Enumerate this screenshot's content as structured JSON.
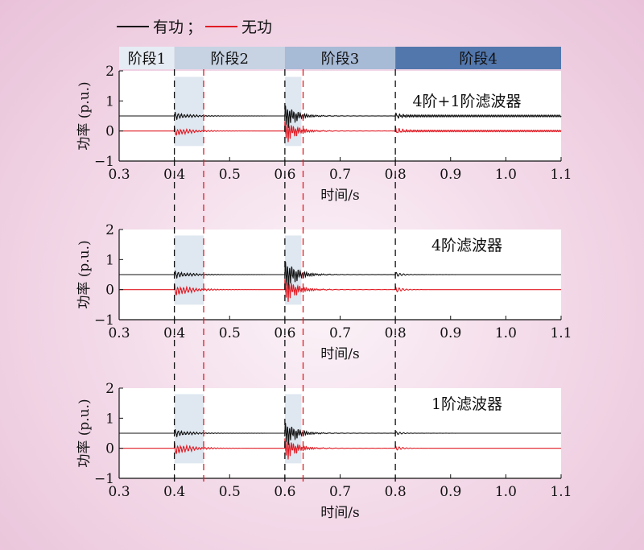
{
  "legend": {
    "active_label": "有功",
    "separator": "；",
    "reactive_label": "无功",
    "active_color": "#111111",
    "reactive_color": "#e01b24"
  },
  "stages": [
    {
      "label": "阶段1",
      "x_start": 0.3,
      "x_end": 0.4,
      "color": "#e6ecf3"
    },
    {
      "label": "阶段2",
      "x_start": 0.4,
      "x_end": 0.6,
      "color": "#c7d3e3"
    },
    {
      "label": "阶段3",
      "x_start": 0.6,
      "x_end": 0.8,
      "color": "#a7bad6"
    },
    {
      "label": "阶段4",
      "x_start": 0.8,
      "x_end": 1.1,
      "color": "#5277ad"
    }
  ],
  "chart_data": [
    {
      "type": "line",
      "annotation": "4阶+1阶滤波器",
      "xlabel": "时间/s",
      "ylabel": "功率 (p.u.)",
      "xlim": [
        0.3,
        1.1
      ],
      "ylim": [
        -1,
        2
      ],
      "xticks": [
        "0.3",
        "0.4",
        "0.5",
        "0.6",
        "0.7",
        "0.8",
        "0.9",
        "1.0",
        "1.1"
      ],
      "yticks": [
        "2",
        "1",
        "0",
        "−1"
      ],
      "shaded_intervals": [
        [
          0.4,
          0.453
        ],
        [
          0.6,
          0.63
        ]
      ],
      "black_dashed_x": [
        0.4,
        0.6,
        0.8
      ],
      "red_dashed_x": [
        0.453,
        0.633
      ],
      "series": [
        {
          "name": "有功",
          "baseline": 0.5,
          "burst_amp": [
            0.15,
            0.55,
            0.08
          ],
          "post_osc_amp": 0.035
        },
        {
          "name": "无功",
          "baseline": 0.0,
          "burst_amp": [
            0.18,
            0.5,
            0.1
          ],
          "post_osc_amp": 0.03
        }
      ]
    },
    {
      "type": "line",
      "annotation": "4阶滤波器",
      "xlabel": "时间/s",
      "ylabel": "功率 (p.u.)",
      "xlim": [
        0.3,
        1.1
      ],
      "ylim": [
        -1,
        2
      ],
      "xticks": [
        "0.3",
        "0.4",
        "0.5",
        "0.6",
        "0.7",
        "0.8",
        "0.9",
        "1.0",
        "1.1"
      ],
      "yticks": [
        "2",
        "1",
        "0",
        "−1"
      ],
      "shaded_intervals": [
        [
          0.4,
          0.453
        ],
        [
          0.6,
          0.63
        ]
      ],
      "black_dashed_x": [
        0.4,
        0.6,
        0.8
      ],
      "red_dashed_x": [
        0.453,
        0.633
      ],
      "series": [
        {
          "name": "有功",
          "baseline": 0.5,
          "burst_amp": [
            0.15,
            0.7,
            0.08
          ],
          "post_osc_amp": 0.0
        },
        {
          "name": "无功",
          "baseline": 0.0,
          "burst_amp": [
            0.25,
            0.55,
            0.1
          ],
          "post_osc_amp": 0.0
        }
      ]
    },
    {
      "type": "line",
      "annotation": "1阶滤波器",
      "xlabel": "时间/s",
      "ylabel": "功率 (p.u.)",
      "xlim": [
        0.3,
        1.1
      ],
      "ylim": [
        -1,
        2
      ],
      "xticks": [
        "0.3",
        "0.4",
        "0.5",
        "0.6",
        "0.7",
        "0.8",
        "0.9",
        "1.0",
        "1.1"
      ],
      "yticks": [
        "2",
        "1",
        "0",
        "−1"
      ],
      "shaded_intervals": [
        [
          0.4,
          0.453
        ],
        [
          0.6,
          0.63
        ]
      ],
      "black_dashed_x": [
        0.4,
        0.6,
        0.8
      ],
      "red_dashed_x": [
        0.453,
        0.633
      ],
      "series": [
        {
          "name": "有功",
          "baseline": 0.5,
          "burst_amp": [
            0.15,
            0.55,
            0.06
          ],
          "post_osc_amp": 0.0
        },
        {
          "name": "无功",
          "baseline": 0.0,
          "burst_amp": [
            0.25,
            0.5,
            0.08
          ],
          "post_osc_amp": 0.0
        }
      ]
    }
  ]
}
